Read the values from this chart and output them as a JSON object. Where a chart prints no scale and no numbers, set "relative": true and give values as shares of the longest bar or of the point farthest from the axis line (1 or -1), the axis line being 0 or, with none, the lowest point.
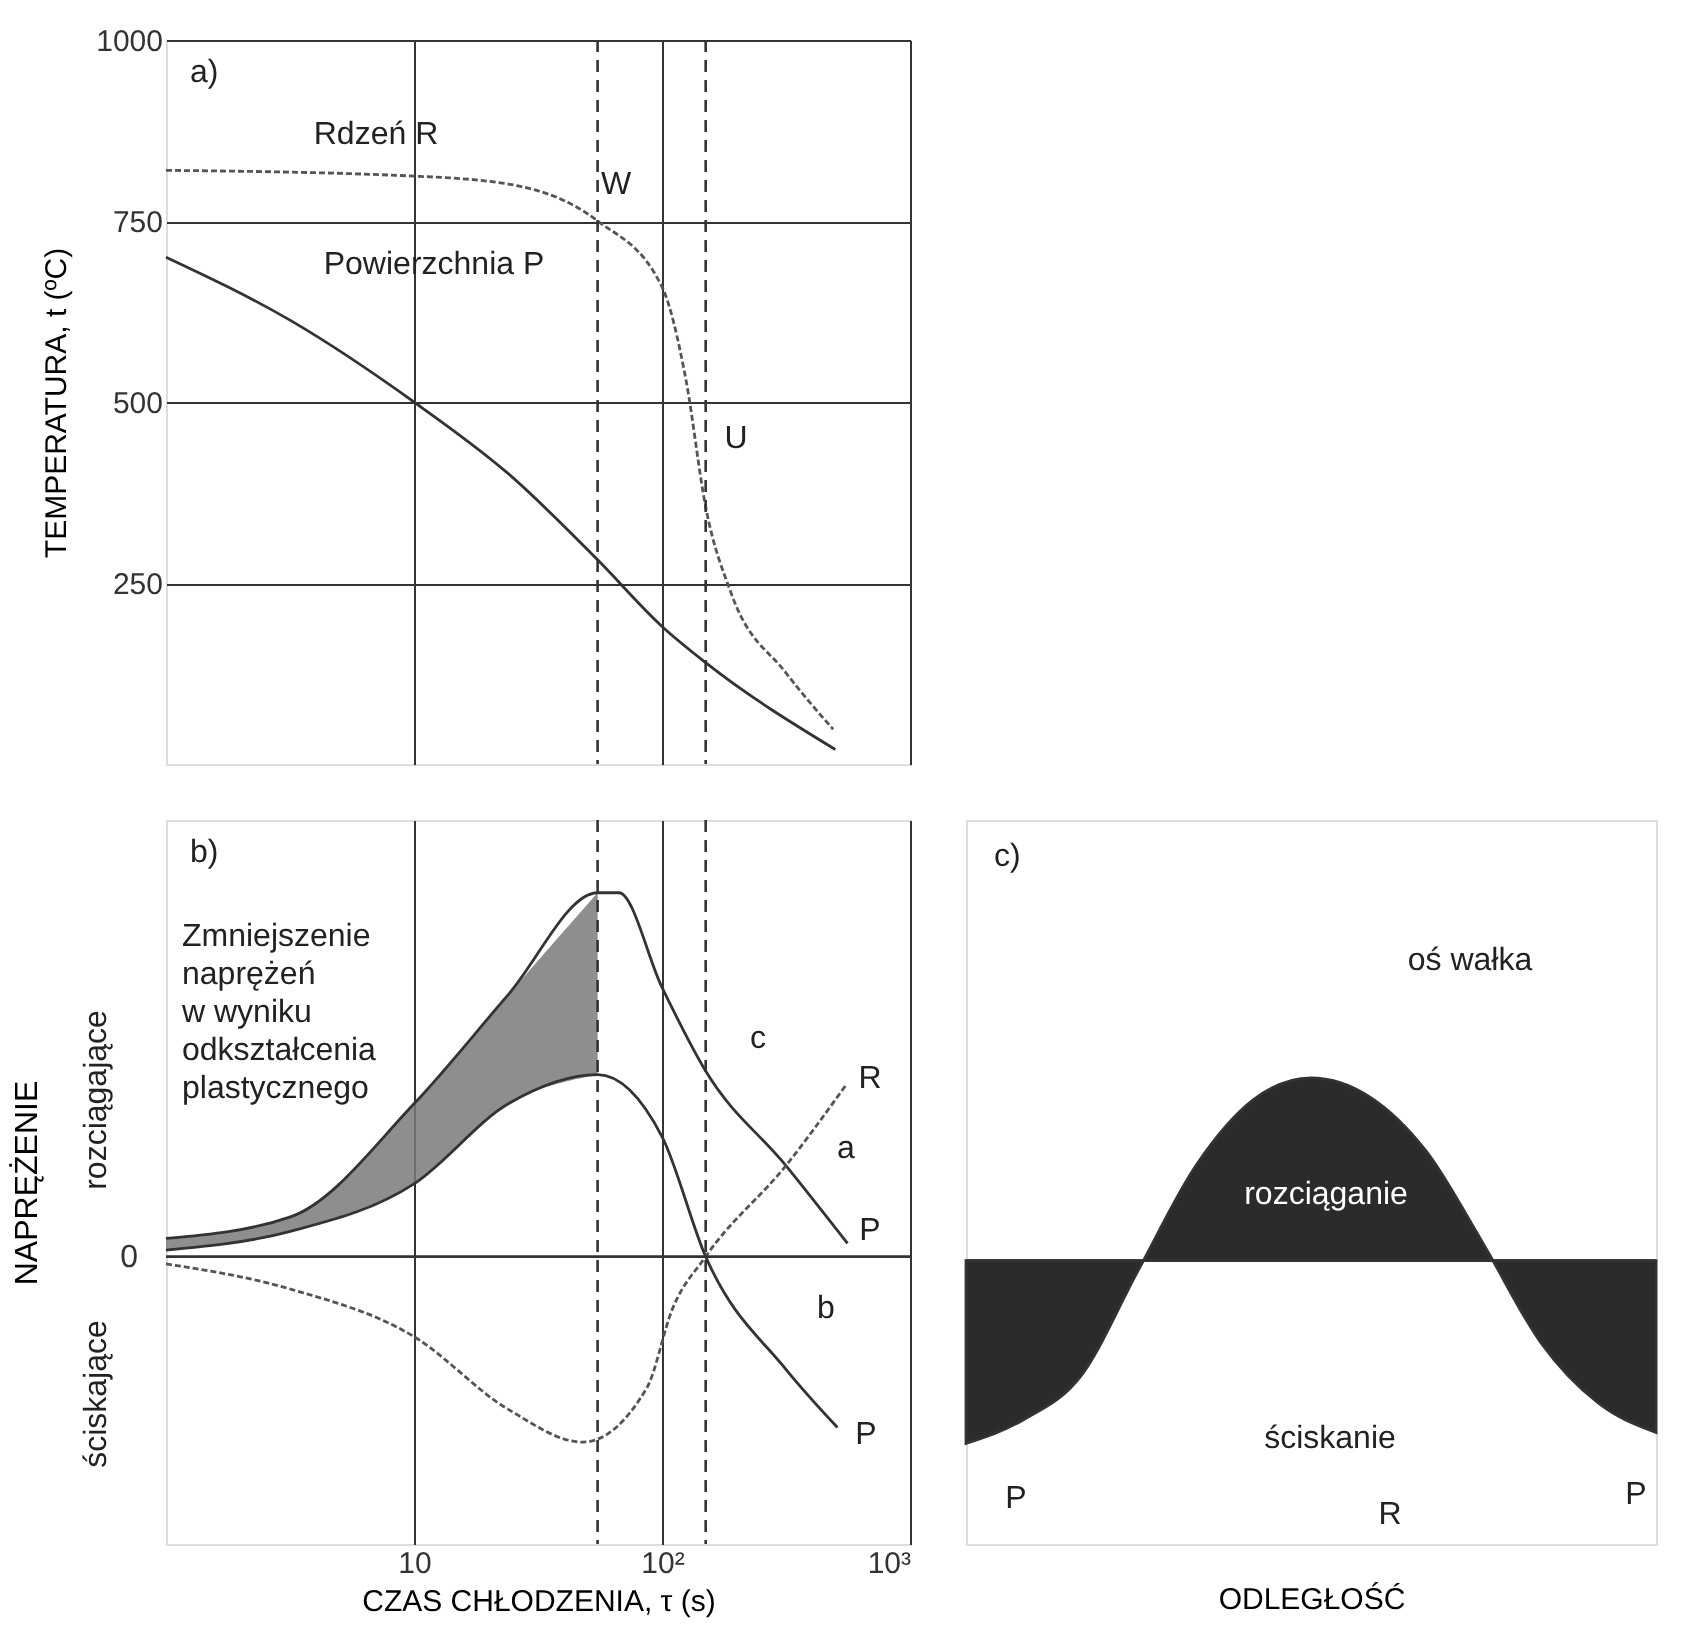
{
  "chart_data": [
    {
      "type": "line",
      "ylabel": "TEMPERATURA, t (ºC)",
      "log": "x",
      "grid": true,
      "tick_labels": "y",
      "xlim": [
        1,
        1000
      ],
      "xticks": [
        10,
        100,
        1000
      ],
      "ylim": [
        0,
        1000
      ],
      "yticks": [
        250,
        500,
        750,
        {
          "value": 1000,
          "label": "1000"
        }
      ],
      "series": [
        {
          "color": "#333333",
          "line_style": "solid",
          "x": [
            1,
            3.2,
            10,
            24,
            55,
            100,
            150,
            500
          ],
          "values": [
            700,
            612,
            500,
            401,
            282,
            190,
            140,
            20
          ]
        },
        {
          "color": "#555555",
          "line_style": "dotted",
          "x": [
            1,
            10,
            24,
            55,
            100,
            125,
            150,
            190,
            316,
            490
          ],
          "values": [
            820,
            812,
            801,
            750,
            659,
            530,
            355,
            236,
            126,
            48
          ]
        }
      ],
      "ref_lines": [
        {
          "axis": "x",
          "value": 55,
          "line_style": "dashed"
        },
        {
          "axis": "x",
          "value": 150,
          "line_style": "dashed"
        }
      ],
      "annotations": [
        "a)",
        "Rdzeń R",
        "Powierzchnia P",
        "W",
        "U"
      ]
    },
    {
      "type": "line",
      "relative": true,
      "xlabel": "CZAS CHŁODZENIA, τ (s)",
      "ylabel": "NAPRĘŻENIE",
      "log": "x",
      "grid": "x",
      "tick_labels": "x",
      "xlim": [
        1,
        1000
      ],
      "xticks": [
        10,
        {
          "value": 100,
          "label": "10²"
        },
        {
          "value": 1000,
          "label": "10³"
        }
      ],
      "series": [
        {
          "color": "#333333",
          "line_style": "solid",
          "x": [
            1,
            3.2,
            10,
            24,
            55,
            67,
            100,
            150,
            316,
            560
          ],
          "values": [
            0.05,
            0.11,
            0.42,
            0.72,
            1.0,
            1.0,
            0.74,
            0.51,
            0.25,
            0.036
          ],
          "lower": [
            0.018,
            0.07,
            0.2,
            0.42,
            0.5,
            null,
            null,
            null,
            null,
            null
          ],
          "upper": [
            0.05,
            0.11,
            0.42,
            0.72,
            1.0,
            null,
            null,
            null,
            null,
            null
          ]
        },
        {
          "color": "#333333",
          "line_style": "solid",
          "x": [
            1,
            3.2,
            10,
            24,
            55,
            100,
            150,
            316,
            510
          ],
          "values": [
            0.018,
            0.07,
            0.2,
            0.42,
            0.5,
            0.33,
            0,
            -0.31,
            -0.47
          ]
        },
        {
          "color": "#555555",
          "line_style": "dotted",
          "x": [
            1,
            3.2,
            10,
            24,
            48,
            87,
            110,
            150,
            316,
            550
          ],
          "values": [
            -0.02,
            -0.09,
            -0.22,
            -0.42,
            -0.51,
            -0.36,
            -0.145,
            0,
            0.25,
            0.47
          ]
        }
      ],
      "ref_lines": [
        {
          "axis": "y",
          "value": 0,
          "label": "0"
        },
        {
          "axis": "x",
          "value": 55,
          "line_style": "dashed"
        },
        {
          "axis": "x",
          "value": 150,
          "line_style": "dashed"
        }
      ],
      "annotations": [
        "b)",
        "rozciągające",
        "ściskające",
        "Zmniejszenie\nnaprężeń\nw wyniku\nodkształcenia\nplastycznego",
        "c",
        "a",
        "b",
        "R",
        "P",
        "P"
      ]
    },
    {
      "type": "area",
      "relative": true,
      "xlabel": "ODLEGŁOŚĆ",
      "grid": false,
      "tick_labels": false,
      "categories": [
        null,
        null,
        null,
        null,
        null,
        null,
        null,
        null,
        null,
        null,
        null,
        null,
        null
      ],
      "series": [
        {
          "color": "#2b2b2b",
          "values": [
            -1.0,
            -0.87,
            -0.63,
            -0.05,
            0.52,
            0.88,
            1.0,
            0.9,
            0.6,
            0.09,
            -0.45,
            -0.78,
            -0.94
          ]
        }
      ],
      "ref_lines": [
        {
          "axis": "y",
          "value": 0
        }
      ],
      "annotations": [
        "c)",
        "oś wałka",
        "rozciąganie",
        "ściskanie",
        "P",
        "R",
        "P"
      ]
    }
  ]
}
